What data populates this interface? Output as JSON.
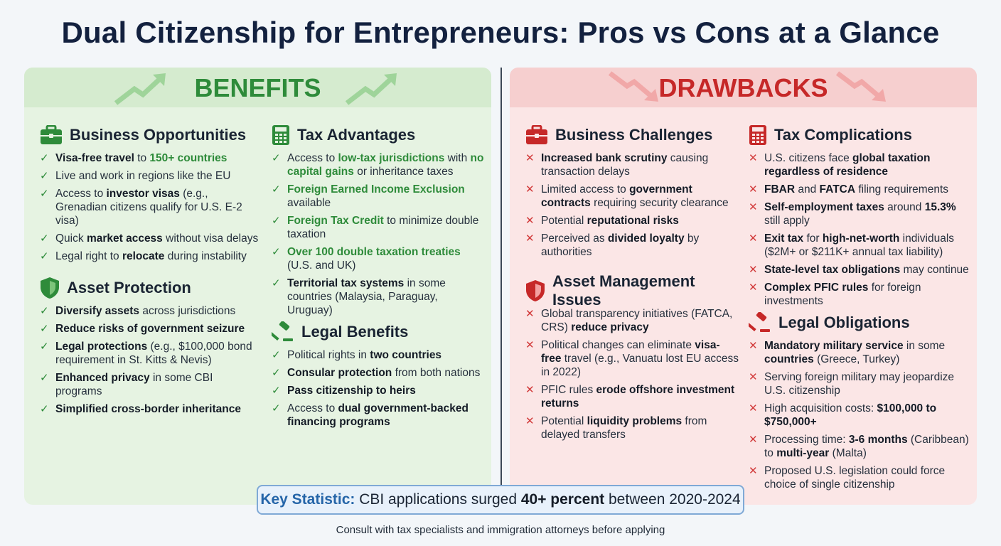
{
  "title": "Dual Citizenship for Entrepreneurs: Pros vs Cons at a Glance",
  "benefits": {
    "header": "BENEFITS",
    "sections": [
      {
        "title": "Business Opportunities",
        "icon": "briefcase-icon",
        "items": [
          [
            [
              "b",
              "Visa-free travel"
            ],
            [
              "t",
              " to "
            ],
            [
              "g",
              "150+ countries"
            ]
          ],
          [
            [
              "t",
              "Live and work in regions like the EU"
            ]
          ],
          [
            [
              "t",
              "Access to "
            ],
            [
              "b",
              "investor visas"
            ],
            [
              "t",
              " (e.g., Grenadian citizens qualify for U.S. E-2 visa)"
            ]
          ],
          [
            [
              "t",
              "Quick "
            ],
            [
              "b",
              "market access"
            ],
            [
              "t",
              " without visa delays"
            ]
          ],
          [
            [
              "t",
              "Legal right to "
            ],
            [
              "b",
              "relocate"
            ],
            [
              "t",
              " during instability"
            ]
          ]
        ]
      },
      {
        "title": "Asset Protection",
        "icon": "shield-icon",
        "items": [
          [
            [
              "b",
              "Diversify assets"
            ],
            [
              "t",
              " across jurisdictions"
            ]
          ],
          [
            [
              "b",
              "Reduce risks of government seizure"
            ]
          ],
          [
            [
              "b",
              "Legal protections"
            ],
            [
              "t",
              " (e.g., $100,000 bond requirement in St. Kitts & Nevis)"
            ]
          ],
          [
            [
              "b",
              "Enhanced privacy"
            ],
            [
              "t",
              " in some CBI programs"
            ]
          ],
          [
            [
              "b",
              "Simplified cross-border inheritance"
            ]
          ]
        ]
      },
      {
        "title": "Tax Advantages",
        "icon": "calculator-icon",
        "items": [
          [
            [
              "t",
              "Access to "
            ],
            [
              "g",
              "low-tax jurisdictions"
            ],
            [
              "t",
              " with "
            ],
            [
              "g",
              "no capital gains"
            ],
            [
              "t",
              " or inheritance taxes"
            ]
          ],
          [
            [
              "g",
              "Foreign Earned Income Exclusion"
            ],
            [
              "t",
              " available"
            ]
          ],
          [
            [
              "g",
              "Foreign Tax Credit"
            ],
            [
              "t",
              " to minimize double taxation"
            ]
          ],
          [
            [
              "g",
              "Over 100 double taxation treaties"
            ],
            [
              "t",
              " (U.S. and UK)"
            ]
          ],
          [
            [
              "b",
              "Territorial tax systems"
            ],
            [
              "t",
              " in some countries (Malaysia, Paraguay, Uruguay)"
            ]
          ]
        ]
      },
      {
        "title": "Legal Benefits",
        "icon": "gavel-icon",
        "items": [
          [
            [
              "t",
              "Political rights in "
            ],
            [
              "b",
              "two countries"
            ]
          ],
          [
            [
              "b",
              "Consular protection"
            ],
            [
              "t",
              " from both nations"
            ]
          ],
          [
            [
              "b",
              "Pass citizenship to heirs"
            ]
          ],
          [
            [
              "t",
              "Access to "
            ],
            [
              "b",
              "dual government-backed financing programs"
            ]
          ]
        ]
      }
    ]
  },
  "drawbacks": {
    "header": "DRAWBACKS",
    "sections": [
      {
        "title": "Business Challenges",
        "icon": "briefcase-icon",
        "items": [
          [
            [
              "b",
              "Increased bank scrutiny"
            ],
            [
              "t",
              " causing transaction delays"
            ]
          ],
          [
            [
              "t",
              "Limited access to "
            ],
            [
              "b",
              "government contracts"
            ],
            [
              "t",
              " requiring security clearance"
            ]
          ],
          [
            [
              "t",
              "Potential "
            ],
            [
              "b",
              "reputational risks"
            ]
          ],
          [
            [
              "t",
              "Perceived as "
            ],
            [
              "b",
              "divided loyalty"
            ],
            [
              "t",
              " by authorities"
            ]
          ]
        ]
      },
      {
        "title": "Asset Management Issues",
        "icon": "shield-icon",
        "items": [
          [
            [
              "t",
              "Global transparency initiatives (FATCA, CRS) "
            ],
            [
              "b",
              "reduce privacy"
            ]
          ],
          [
            [
              "t",
              "Political changes can eliminate "
            ],
            [
              "b",
              "visa-free"
            ],
            [
              "t",
              " travel (e.g., Vanuatu lost EU access in 2022)"
            ]
          ],
          [
            [
              "t",
              "PFIC rules "
            ],
            [
              "b",
              "erode offshore investment returns"
            ]
          ],
          [
            [
              "t",
              "Potential "
            ],
            [
              "b",
              "liquidity problems"
            ],
            [
              "t",
              " from delayed transfers"
            ]
          ]
        ]
      },
      {
        "title": "Tax Complications",
        "icon": "calculator-icon",
        "items": [
          [
            [
              "t",
              "U.S. citizens face "
            ],
            [
              "b",
              "global taxation regardless of residence"
            ]
          ],
          [
            [
              "b",
              "FBAR"
            ],
            [
              "t",
              " and "
            ],
            [
              "b",
              "FATCA"
            ],
            [
              "t",
              " filing requirements"
            ]
          ],
          [
            [
              "b",
              "Self-employment taxes"
            ],
            [
              "t",
              " around "
            ],
            [
              "b",
              "15.3%"
            ],
            [
              "t",
              " still apply"
            ]
          ],
          [
            [
              "b",
              "Exit tax"
            ],
            [
              "t",
              " for "
            ],
            [
              "b",
              "high-net-worth"
            ],
            [
              "t",
              " individuals ($2M+ or $211K+ annual tax liability)"
            ]
          ],
          [
            [
              "b",
              "State-level tax obligations"
            ],
            [
              "t",
              " may continue"
            ]
          ],
          [
            [
              "b",
              "Complex PFIC rules"
            ],
            [
              "t",
              " for foreign investments"
            ]
          ]
        ]
      },
      {
        "title": "Legal Obligations",
        "icon": "gavel-icon",
        "items": [
          [
            [
              "b",
              "Mandatory military service"
            ],
            [
              "t",
              " in some "
            ],
            [
              "b",
              "countries"
            ],
            [
              "t",
              " (Greece, Turkey)"
            ]
          ],
          [
            [
              "t",
              "Serving foreign military may jeopardize U.S. citizenship"
            ]
          ],
          [
            [
              "t",
              "High acquisition costs: "
            ],
            [
              "b",
              "$100,000 to $750,000+"
            ]
          ],
          [
            [
              "t",
              "Processing time: "
            ],
            [
              "b",
              "3-6 months"
            ],
            [
              "t",
              " (Caribbean) to "
            ],
            [
              "b",
              "multi-year"
            ],
            [
              "t",
              " (Malta)"
            ]
          ],
          [
            [
              "t",
              "Proposed U.S. legislation could force choice of single citizenship"
            ]
          ]
        ]
      }
    ]
  },
  "key_statistic": {
    "label": "Key Statistic:",
    "before": " CBI applications surged ",
    "highlight": "40+ percent",
    "after": " between 2020-2024"
  },
  "footer": "Consult with tax specialists and immigration attorneys before applying",
  "colors": {
    "benefit_green": "#2e8b3a",
    "drawback_red": "#c62828",
    "title_navy": "#13213f"
  }
}
